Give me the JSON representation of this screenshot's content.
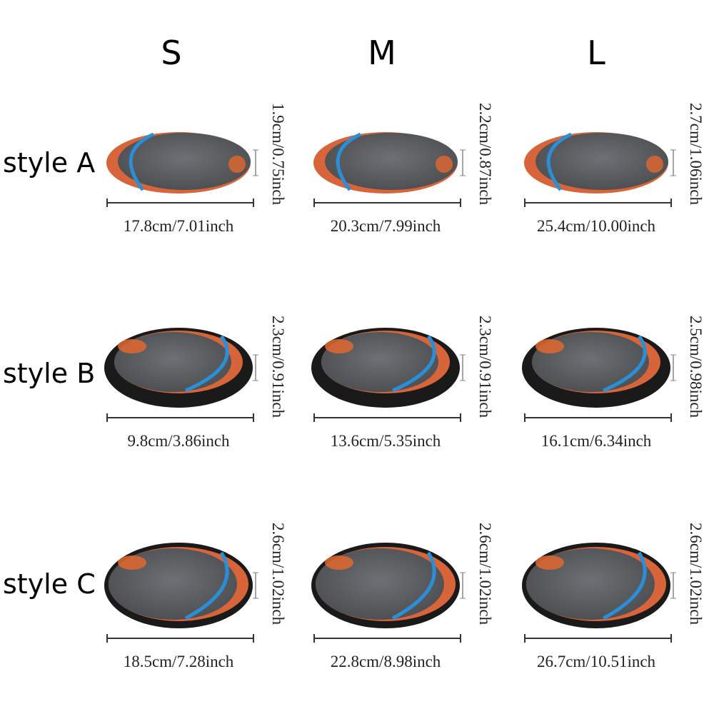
{
  "columns": [
    "S",
    "M",
    "L"
  ],
  "rows": [
    {
      "label": "style A",
      "cells": [
        {
          "height": "1.9cm/0.75inch",
          "width": "17.8cm/7.01inch"
        },
        {
          "height": "2.2cm/0.87inch",
          "width": "20.3cm/7.99inch"
        },
        {
          "height": "2.7cm/1.06inch",
          "width": "25.4cm/10.00inch"
        }
      ]
    },
    {
      "label": "style B",
      "cells": [
        {
          "height": "2.3cm/0.91inch",
          "width": "9.8cm/3.86inch"
        },
        {
          "height": "2.3cm/0.91inch",
          "width": "13.6cm/5.35inch"
        },
        {
          "height": "2.5cm/0.98inch",
          "width": "16.1cm/6.34inch"
        }
      ]
    },
    {
      "label": "style C",
      "cells": [
        {
          "height": "2.6cm/1.02inch",
          "width": "18.5cm/7.28inch"
        },
        {
          "height": "2.6cm/1.02inch",
          "width": "22.8cm/8.98inch"
        },
        {
          "height": "2.6cm/1.02inch",
          "width": "26.7cm/10.51inch"
        }
      ]
    }
  ]
}
